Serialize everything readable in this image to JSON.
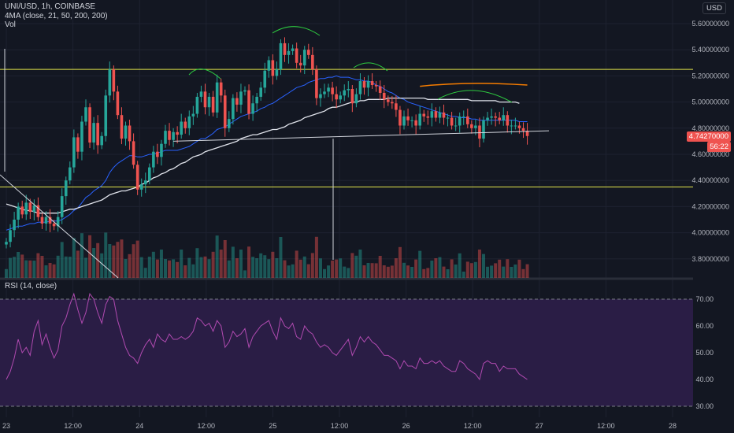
{
  "legend": {
    "symbol": "UNI/USD, 1h, COINBASE",
    "ma": "4MA (close, 21, 50, 200, 200)",
    "vol": "Vol"
  },
  "rsi_legend": "RSI (14, close)",
  "currency_button": "USD",
  "current_price": "4.74270000",
  "countdown": "56:22",
  "colors": {
    "bg": "#131722",
    "up": "#26a69a",
    "down": "#ef5350",
    "ma21": "#2962ff",
    "ma50": "#e0e3eb",
    "ma200": "#f57c00",
    "level": "#e0e34a",
    "rsi": "#b04ab0",
    "rsi_band": "#2a1d45",
    "arc": "#2ecc40"
  },
  "chart_data": [
    {
      "type": "candlestick",
      "title": "UNI/USD, 1h, COINBASE",
      "x_ticks": [
        "23",
        "12:00",
        "24",
        "12:00",
        "25",
        "12:00",
        "26",
        "12:00",
        "27",
        "12:00",
        "28"
      ],
      "y_ticks": [
        "5.60000000",
        "5.40000000",
        "5.20000000",
        "5.00000000",
        "4.80000000",
        "4.60000000",
        "4.40000000",
        "4.20000000",
        "4.00000000",
        "3.80000000"
      ],
      "ylim": [
        3.65,
        5.7
      ],
      "horizontal_levels": [
        5.25,
        4.35
      ],
      "closes": [
        3.93,
        4.02,
        4.1,
        4.2,
        4.14,
        4.23,
        4.16,
        4.21,
        4.12,
        4.07,
        4.12,
        4.07,
        4.05,
        4.12,
        4.28,
        4.4,
        4.5,
        4.73,
        4.62,
        4.85,
        4.96,
        4.69,
        4.84,
        4.67,
        4.74,
        5.05,
        5.25,
        5.08,
        4.9,
        4.72,
        4.82,
        4.7,
        4.52,
        4.33,
        4.37,
        4.4,
        4.5,
        4.62,
        4.58,
        4.68,
        4.78,
        4.71,
        4.77,
        4.75,
        4.85,
        4.8,
        4.89,
        4.91,
        5.04,
        5.08,
        4.96,
        5.04,
        4.92,
        5.15,
        5.05,
        4.8,
        4.87,
        5.03,
        4.98,
        5.08,
        5.09,
        4.91,
        4.99,
        5.04,
        5.11,
        5.24,
        5.32,
        5.2,
        5.25,
        5.45,
        5.36,
        5.39,
        5.41,
        5.3,
        5.28,
        5.4,
        5.36,
        5.25,
        5.03,
        5.06,
        5.08,
        5.11,
        5.06,
        5.02,
        5.05,
        5.09,
        5.1,
        4.99,
        5.06,
        5.16,
        5.11,
        5.16,
        5.13,
        5.12,
        5.07,
        5.02,
        5.0,
        4.99,
        4.94,
        4.82,
        4.89,
        4.86,
        4.86,
        4.82,
        4.91,
        4.89,
        4.88,
        4.93,
        4.88,
        4.92,
        4.88,
        4.88,
        4.82,
        4.82,
        4.89,
        4.89,
        4.83,
        4.8,
        4.82,
        4.72,
        4.86,
        4.88,
        4.89,
        4.88,
        4.86,
        4.9,
        4.82,
        4.82,
        4.82,
        4.8,
        4.78,
        4.74
      ],
      "ma21": [
        4.02,
        4.03,
        4.04,
        4.05,
        4.05,
        4.06,
        4.07,
        4.07,
        4.08,
        4.08,
        4.08,
        4.09,
        4.09,
        4.09,
        4.1,
        4.12,
        4.14,
        4.17,
        4.19,
        4.23,
        4.27,
        4.29,
        4.32,
        4.34,
        4.36,
        4.4,
        4.46,
        4.5,
        4.53,
        4.55,
        4.57,
        4.59,
        4.59,
        4.58,
        4.58,
        4.59,
        4.6,
        4.6,
        4.61,
        4.62,
        4.63,
        4.63,
        4.63,
        4.63,
        4.64,
        4.65,
        4.66,
        4.68,
        4.7,
        4.72,
        4.72,
        4.74,
        4.76,
        4.79,
        4.8,
        4.81,
        4.83,
        4.85,
        4.87,
        4.89,
        4.9,
        4.91,
        4.92,
        4.93,
        4.95,
        4.96,
        4.98,
        4.99,
        5.01,
        5.03,
        5.05,
        5.07,
        5.09,
        5.11,
        5.12,
        5.13,
        5.15,
        5.16,
        5.17,
        5.18,
        5.18,
        5.19,
        5.19,
        5.2,
        5.19,
        5.19,
        5.19,
        5.18,
        5.17,
        5.17,
        5.16,
        5.16,
        5.15,
        5.13,
        5.12,
        5.1,
        5.08,
        5.07,
        5.05,
        5.03,
        5.02,
        5.0,
        4.99,
        4.98,
        4.97,
        4.96,
        4.95,
        4.94,
        4.93,
        4.92,
        4.91,
        4.9,
        4.89,
        4.89,
        4.88,
        4.88,
        4.88,
        4.87,
        4.87,
        4.86,
        4.86,
        4.86,
        4.86,
        4.86,
        4.86,
        4.86,
        4.86,
        4.86,
        4.86,
        4.85,
        4.85,
        4.85
      ],
      "ma50": [
        4.22,
        4.21,
        4.2,
        4.19,
        4.18,
        4.17,
        4.17,
        4.16,
        4.15,
        4.15,
        4.15,
        4.15,
        4.15,
        4.15,
        4.16,
        4.17,
        4.18,
        4.18,
        4.19,
        4.2,
        4.21,
        4.22,
        4.23,
        4.24,
        4.25,
        4.27,
        4.29,
        4.3,
        4.31,
        4.32,
        4.32,
        4.33,
        4.34,
        4.35,
        4.37,
        4.38,
        4.4,
        4.42,
        4.43,
        4.45,
        4.46,
        4.48,
        4.49,
        4.51,
        4.53,
        4.54,
        4.56,
        4.58,
        4.59,
        4.6,
        4.62,
        4.63,
        4.64,
        4.65,
        4.66,
        4.67,
        4.68,
        4.69,
        4.7,
        4.72,
        4.73,
        4.74,
        4.75,
        4.75,
        4.76,
        4.77,
        4.78,
        4.79,
        4.79,
        4.8,
        4.81,
        4.83,
        4.84,
        4.85,
        4.86,
        4.88,
        4.89,
        4.9,
        4.91,
        4.92,
        4.93,
        4.95,
        4.96,
        4.96,
        4.97,
        4.98,
        4.99,
        5.0,
        5.0,
        5.01,
        5.01,
        5.02,
        5.02,
        5.02,
        5.02,
        5.02,
        5.03,
        5.03,
        5.03,
        5.03,
        5.03,
        5.03,
        5.03,
        5.03,
        5.03,
        5.03,
        5.02,
        5.02,
        5.02,
        5.02,
        5.02,
        5.02,
        5.02,
        5.02,
        5.02,
        5.02,
        5.02,
        5.01,
        5.01,
        5.01,
        5.01,
        5.01,
        5.01,
        5.01,
        5.0,
        5.0,
        5.0,
        5.0,
        5.0,
        4.99
      ]
    },
    {
      "type": "line",
      "title": "RSI (14, close)",
      "y_ticks": [
        "70.00",
        "60.00",
        "50.00",
        "40.00",
        "30.00"
      ],
      "ylim": [
        27,
        76
      ],
      "bands": [
        30,
        70
      ],
      "values": [
        40,
        43,
        48,
        55,
        50,
        52,
        49,
        58,
        62,
        53,
        57,
        52,
        48,
        51,
        60,
        63,
        68,
        72,
        66,
        61,
        65,
        72,
        70,
        65,
        61,
        68,
        71,
        70,
        62,
        57,
        52,
        49,
        48,
        46,
        50,
        53,
        55,
        52,
        57,
        55,
        54,
        57,
        55,
        55,
        56,
        55,
        56,
        58,
        63,
        62,
        60,
        61,
        58,
        62,
        60,
        52,
        54,
        58,
        56,
        57,
        59,
        52,
        56,
        58,
        60,
        61,
        62,
        58,
        55,
        63,
        60,
        59,
        61,
        56,
        55,
        60,
        58,
        57,
        54,
        52,
        53,
        52,
        50,
        49,
        51,
        53,
        55,
        49,
        52,
        56,
        54,
        56,
        54,
        53,
        51,
        49,
        49,
        48,
        47,
        44,
        47,
        45,
        45,
        44,
        48,
        46,
        46,
        47,
        46,
        47,
        45,
        44,
        43,
        43,
        47,
        46,
        44,
        43,
        42,
        40,
        46,
        47,
        46,
        46,
        43,
        45,
        44,
        44,
        44,
        42,
        41,
        40
      ]
    }
  ]
}
